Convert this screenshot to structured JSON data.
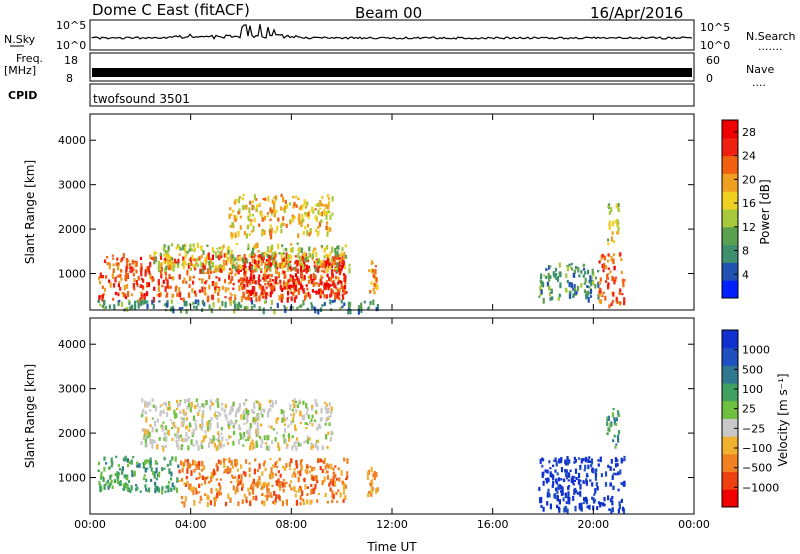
{
  "header": {
    "station": "Dome C East (fitACF)",
    "beam": "Beam 00",
    "date": "16/Apr/2016",
    "cpid_program": "twofsound 3501"
  },
  "side_labels": {
    "nsky": "N.Sky",
    "freq_line1": "Freq.",
    "freq_line2": "[MHz]",
    "cpid": "CPID",
    "nsearch": "N.Search",
    "nsearch_dots": ".......",
    "nave": "Nave",
    "nave_dots": "...."
  },
  "noise_axis": {
    "left_top": "10^5",
    "left_bottom": "10^0",
    "right_top": "10^5",
    "right_bottom": "10^0"
  },
  "freq_axis": {
    "left_top": "18",
    "left_bottom": "8",
    "right_top": "60",
    "right_bottom": "0"
  },
  "colors": {
    "power_scale": [
      "#0020ff",
      "#2050b0",
      "#3d8f6e",
      "#5aa050",
      "#a8c83c",
      "#f0d020",
      "#f0a020",
      "#f06010",
      "#f02010",
      "#f00000"
    ],
    "velocity_scale": [
      "#f00000",
      "#f04010",
      "#f08020",
      "#f0b030",
      "#c8c8c8",
      "#70c040",
      "#40a060",
      "#307890",
      "#2050c0",
      "#1030d0"
    ]
  },
  "chart_data": [
    {
      "type": "heatmap",
      "name": "power",
      "xlabel": "",
      "ylabel": "Slant Range [km]",
      "x_ticks": [
        "00:00",
        "04:00",
        "08:00",
        "12:00",
        "16:00",
        "20:00",
        "00:00"
      ],
      "xlim_hours": [
        0,
        24
      ],
      "y_ticks": [
        1000,
        2000,
        3000,
        4000
      ],
      "ylim_km": [
        180,
        4590
      ],
      "colorbar_label": "Power [dB]",
      "colorbar_ticks": [
        4,
        8,
        12,
        16,
        20,
        24,
        28
      ],
      "colorbar_range": [
        0,
        30
      ],
      "regions": [
        {
          "t0": 0.3,
          "t1": 10.1,
          "r0": 450,
          "r1": 1480,
          "level": 24
        },
        {
          "t0": 6.0,
          "t1": 10.2,
          "r0": 500,
          "r1": 1450,
          "level": 28
        },
        {
          "t0": 2.5,
          "t1": 10.3,
          "r0": 1100,
          "r1": 1700,
          "level": 14
        },
        {
          "t0": 5.5,
          "t1": 9.6,
          "r0": 1900,
          "r1": 2800,
          "level": 18
        },
        {
          "t0": 11.0,
          "t1": 11.4,
          "r0": 600,
          "r1": 1300,
          "level": 22
        },
        {
          "t0": 17.8,
          "t1": 20.2,
          "r0": 450,
          "r1": 1250,
          "level": 8
        },
        {
          "t0": 20.2,
          "t1": 21.2,
          "r0": 300,
          "r1": 1500,
          "level": 24
        },
        {
          "t0": 20.5,
          "t1": 21.0,
          "r0": 1700,
          "r1": 2600,
          "level": 14
        },
        {
          "t0": 0.2,
          "t1": 11.5,
          "r0": 200,
          "r1": 420,
          "level": 8
        }
      ]
    },
    {
      "type": "heatmap",
      "name": "velocity",
      "xlabel": "Time UT",
      "ylabel": "Slant Range [km]",
      "x_ticks": [
        "00:00",
        "04:00",
        "08:00",
        "12:00",
        "16:00",
        "20:00",
        "00:00"
      ],
      "xlim_hours": [
        0,
        24
      ],
      "y_ticks": [
        1000,
        2000,
        3000,
        4000
      ],
      "ylim_km": [
        180,
        4590
      ],
      "colorbar_label": "Velocity [m s⁻¹]",
      "colorbar_ticks": [
        "1000",
        "500",
        "100",
        "25",
        "−25",
        "−100",
        "−500",
        "−1000"
      ],
      "regions": [
        {
          "t0": 0.3,
          "t1": 3.5,
          "r0": 700,
          "r1": 1500,
          "level": "-500 to -100 green"
        },
        {
          "t0": 3.5,
          "t1": 10.2,
          "r0": 450,
          "r1": 1450,
          "level": "-100"
        },
        {
          "t0": 2.0,
          "t1": 9.6,
          "r0": 1700,
          "r1": 2800,
          "level": "25"
        },
        {
          "t0": 11.0,
          "t1": 11.4,
          "r0": 600,
          "r1": 1300,
          "level": "-100"
        },
        {
          "t0": 17.8,
          "t1": 21.2,
          "r0": 300,
          "r1": 1500,
          "level": "1000"
        },
        {
          "t0": 20.5,
          "t1": 21.0,
          "r0": 1700,
          "r1": 2600,
          "level": "100"
        }
      ]
    }
  ]
}
